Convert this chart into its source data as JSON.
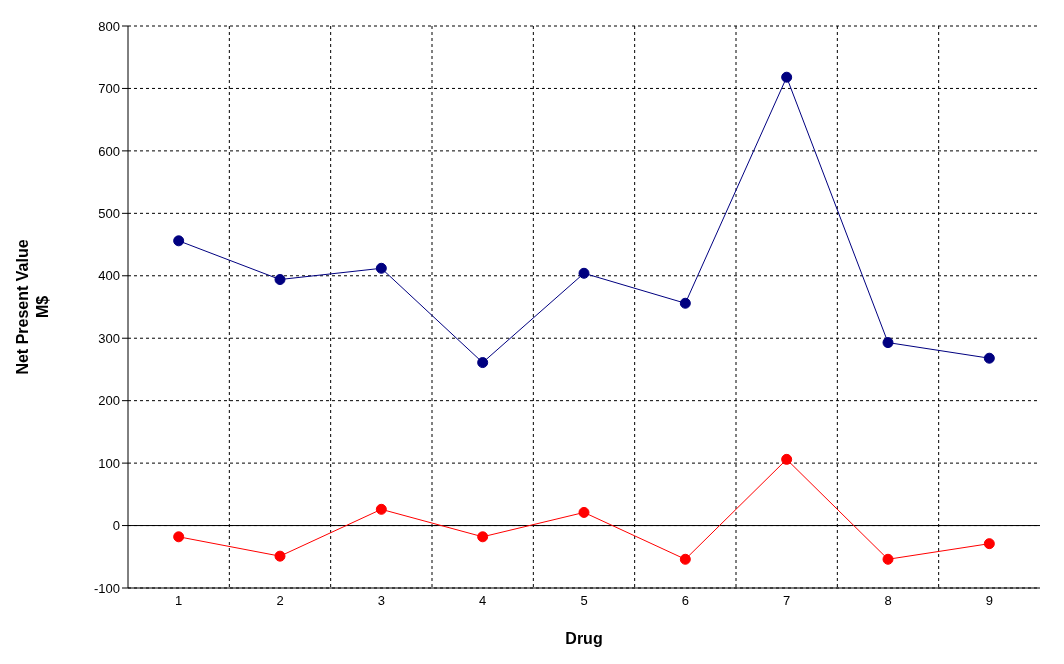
{
  "chart_data": {
    "type": "line",
    "xlabel": "Drug",
    "ylabel": "Net Present Value\nM$",
    "categories": [
      "1",
      "2",
      "3",
      "4",
      "5",
      "6",
      "7",
      "8",
      "9"
    ],
    "series": [
      {
        "color": "#000080",
        "values": [
          456,
          394,
          412,
          261,
          404,
          356,
          718,
          293,
          268
        ]
      },
      {
        "color": "#ff0000",
        "values": [
          -18,
          -49,
          26,
          -18,
          21,
          -54,
          106,
          -54,
          -29
        ]
      }
    ],
    "ylim": [
      -100,
      800
    ],
    "yticks": [
      -100,
      0,
      100,
      200,
      300,
      400,
      500,
      600,
      700,
      800
    ],
    "grid": true,
    "marker": "circle",
    "line_style": "solid",
    "ref_lines": [
      {
        "axis": "y",
        "value": 0,
        "color": "#000000"
      }
    ]
  }
}
